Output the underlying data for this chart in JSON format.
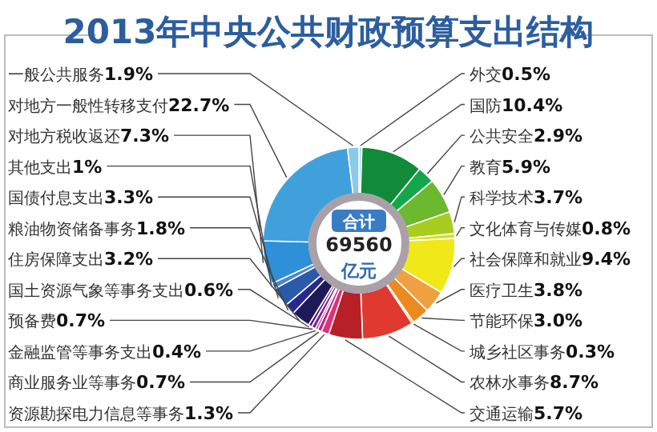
{
  "chart_data": {
    "type": "donut",
    "title": "2013年中央公共财政预算支出结构",
    "categories": [
      "外交",
      "国防",
      "公共安全",
      "教育",
      "科学技术",
      "文化体育与传媒",
      "社会保障和就业",
      "医疗卫生",
      "节能环保",
      "城乡社区事务",
      "农林水事务",
      "交通运输",
      "资源勘探电力信息等事务",
      "商业服务业等事务",
      "金融监管等事务支出",
      "预备费",
      "国土资源气象等事务支出",
      "住房保障支出",
      "粮油物资储备事务",
      "国债付息支出",
      "其他支出",
      "对地方税收返还",
      "对地方一般性转移支付",
      "一般公共服务"
    ],
    "values": [
      0.5,
      10.4,
      2.9,
      5.9,
      3.7,
      0.8,
      9.4,
      3.8,
      3.0,
      0.3,
      8.7,
      5.7,
      1.3,
      0.7,
      0.4,
      0.7,
      0.6,
      3.2,
      1.8,
      3.3,
      1,
      7.3,
      22.7,
      1.9
    ],
    "value_labels": [
      "0.5%",
      "10.4%",
      "2.9%",
      "5.9%",
      "3.7%",
      "0.8%",
      "9.4%",
      "3.8%",
      "3.0%",
      "0.3%",
      "8.7%",
      "5.7%",
      "1.3%",
      "0.7%",
      "0.4%",
      "0.7%",
      "0.6%",
      "3.2%",
      "1.8%",
      "3.3%",
      "1%",
      "7.3%",
      "22.7%",
      "1.9%"
    ],
    "colors": [
      "#a8d4f0",
      "#118a3a",
      "#12a84a",
      "#6cb82e",
      "#a8cc20",
      "#d8e020",
      "#f0e818",
      "#f0a040",
      "#ec8a20",
      "#e86a20",
      "#e03a30",
      "#b82028",
      "#e0307a",
      "#c02080",
      "#a02080",
      "#80208a",
      "#602080",
      "#1e1a5a",
      "#28288a",
      "#2a5aa8",
      "#4a88c8",
      "#2e90d8",
      "#40a0dc",
      "#8ac8ec"
    ],
    "annotations": [
      "合计",
      "69560",
      "亿元"
    ]
  }
}
